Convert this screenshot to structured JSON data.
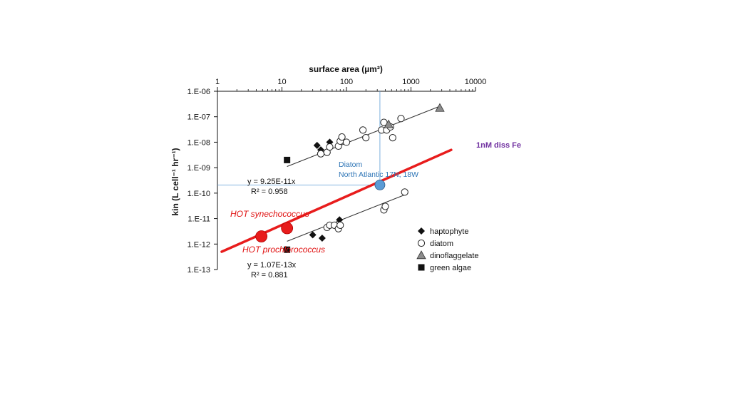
{
  "chart_data": {
    "type": "scatter",
    "xlabel": "surface area (µm²)",
    "ylabel": "kin (L cell⁻¹ hr⁻¹)",
    "xscale": "log",
    "yscale": "log",
    "xlim": [
      1,
      10000
    ],
    "ylim": [
      1e-13,
      1e-06
    ],
    "grid": false,
    "x_ticks": [
      "1",
      "10",
      "100",
      "1000",
      "10000"
    ],
    "y_ticks": [
      "1.E-13",
      "1.E-12",
      "1.E-11",
      "1.E-10",
      "1.E-09",
      "1.E-08",
      "1.E-07",
      "1.E-06"
    ],
    "legend_position": "bottom-right",
    "legend": [
      {
        "key": "haptophyte",
        "label": "haptophyte",
        "marker": "diamond-filled"
      },
      {
        "key": "diatom",
        "label": "diatom",
        "marker": "circle-open"
      },
      {
        "key": "dinoflaggelate",
        "label": "dinoflaggelate",
        "marker": "triangle-gray"
      },
      {
        "key": "green_algae",
        "label": "green algae",
        "marker": "square-filled"
      }
    ],
    "series": [
      {
        "key": "haptophyte",
        "group": "upper",
        "points": [
          [
            35,
            7.5e-09
          ],
          [
            40,
            5e-09
          ],
          [
            55,
            1e-08
          ]
        ]
      },
      {
        "key": "diatom",
        "group": "upper",
        "points": [
          [
            40,
            3.5e-09
          ],
          [
            50,
            4e-09
          ],
          [
            55,
            6.5e-09
          ],
          [
            75,
            7e-09
          ],
          [
            80,
            1.1e-08
          ],
          [
            85,
            1.6e-08
          ],
          [
            100,
            1e-08
          ],
          [
            180,
            3e-08
          ],
          [
            200,
            1.5e-08
          ],
          [
            350,
            3e-08
          ],
          [
            380,
            6e-08
          ],
          [
            420,
            3e-08
          ],
          [
            480,
            4e-08
          ],
          [
            520,
            1.5e-08
          ],
          [
            700,
            8.5e-08
          ]
        ]
      },
      {
        "key": "dinoflaggelate",
        "group": "upper",
        "points": [
          [
            450,
            5e-08
          ],
          [
            2800,
            2.2e-07
          ]
        ]
      },
      {
        "key": "green_algae",
        "group": "upper",
        "points": [
          [
            12,
            2e-09
          ]
        ]
      },
      {
        "key": "haptophyte",
        "group": "lower",
        "points": [
          [
            30,
            2.3e-12
          ],
          [
            42,
            1.7e-12
          ],
          [
            78,
            9e-12
          ]
        ]
      },
      {
        "key": "diatom",
        "group": "lower",
        "points": [
          [
            50,
            4.5e-12
          ],
          [
            55,
            5.5e-12
          ],
          [
            65,
            5.5e-12
          ],
          [
            75,
            4e-12
          ],
          [
            80,
            5.5e-12
          ],
          [
            380,
            2.2e-11
          ],
          [
            400,
            3e-11
          ],
          [
            800,
            1.1e-10
          ]
        ]
      },
      {
        "key": "green_algae",
        "group": "lower",
        "points": [
          [
            12,
            6e-13
          ]
        ]
      }
    ],
    "fit_lines": [
      {
        "equation": "y = 9.25E-11x",
        "r2": "R² = 0.958",
        "coef": 9.25e-11,
        "x_range": [
          12,
          2800
        ]
      },
      {
        "equation": "y = 1.07E-13x",
        "r2": "R² = 0.881",
        "coef": 1.07e-13,
        "x_range": [
          12,
          800
        ]
      }
    ],
    "overlay": {
      "fe_line_label": "1nM diss Fe",
      "fe_line": {
        "x0": 1,
        "y0": 5e-13,
        "x1": 4200,
        "y1": 5e-09
      },
      "highlight_points": [
        {
          "label": "HOT synechococcus",
          "x": 12,
          "y": 4.2e-12,
          "color": "#e81c1c"
        },
        {
          "label": "HOT prochlorococcus",
          "x": 4.8,
          "y": 2e-12,
          "color": "#e81c1c"
        }
      ],
      "diatom_point": {
        "label_line1": "Diatom",
        "label_line2": "North Atlantic 17N, 18W",
        "x": 330,
        "y": 2.1e-10,
        "color": "#5b9bd5"
      }
    }
  }
}
